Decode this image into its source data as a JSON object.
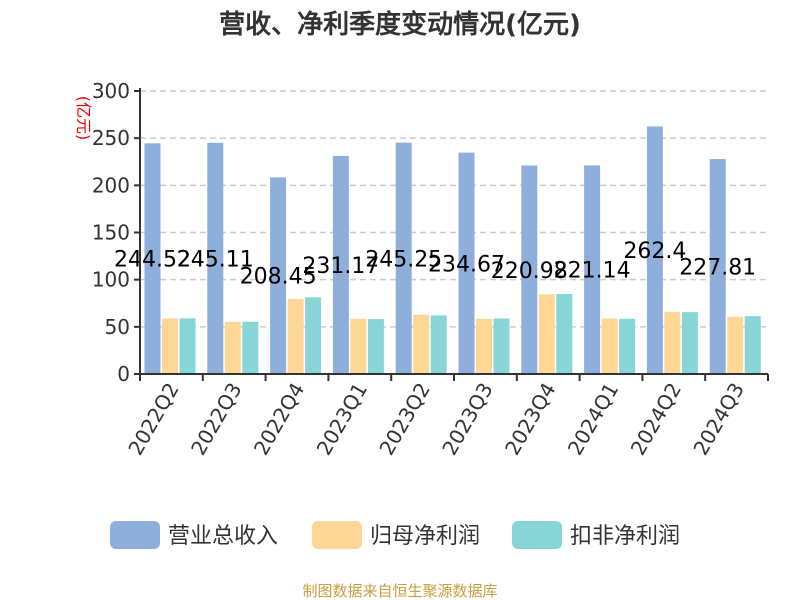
{
  "chart_data": {
    "type": "bar",
    "title": "营收、净利季度变动情况(亿元)",
    "ylabel": "(亿元)",
    "ylim": [
      0,
      300
    ],
    "yticks": [
      0,
      50,
      100,
      150,
      200,
      250,
      300
    ],
    "grid": true,
    "legend_placement": "bottom",
    "categories": [
      "2022Q2",
      "2022Q3",
      "2022Q4",
      "2023Q1",
      "2023Q2",
      "2023Q3",
      "2023Q4",
      "2024Q1",
      "2024Q2",
      "2024Q3"
    ],
    "series": [
      {
        "name": "营业总收入",
        "color": "#8eaedb",
        "values": [
          244.52,
          245.11,
          208.45,
          231.17,
          245.25,
          234.67,
          220.98,
          221.14,
          262.4,
          227.81
        ],
        "labels": [
          "244.52",
          "245.11",
          "208.45",
          "231.17",
          "245.25",
          "234.67",
          "220.98",
          "221.14",
          "262.4",
          "227.81"
        ]
      },
      {
        "name": "归母净利润",
        "color": "#fed797",
        "values": [
          59,
          55.3,
          79.5,
          58.5,
          62.8,
          58.5,
          84.5,
          58.8,
          66,
          60.6
        ]
      },
      {
        "name": "扣非净利润",
        "color": "#88d5d8",
        "values": [
          59,
          55.3,
          81.3,
          58.2,
          62.1,
          58.8,
          84.8,
          58.5,
          65.6,
          61.3
        ]
      }
    ]
  },
  "footer": "制图数据来自恒生聚源数据库"
}
